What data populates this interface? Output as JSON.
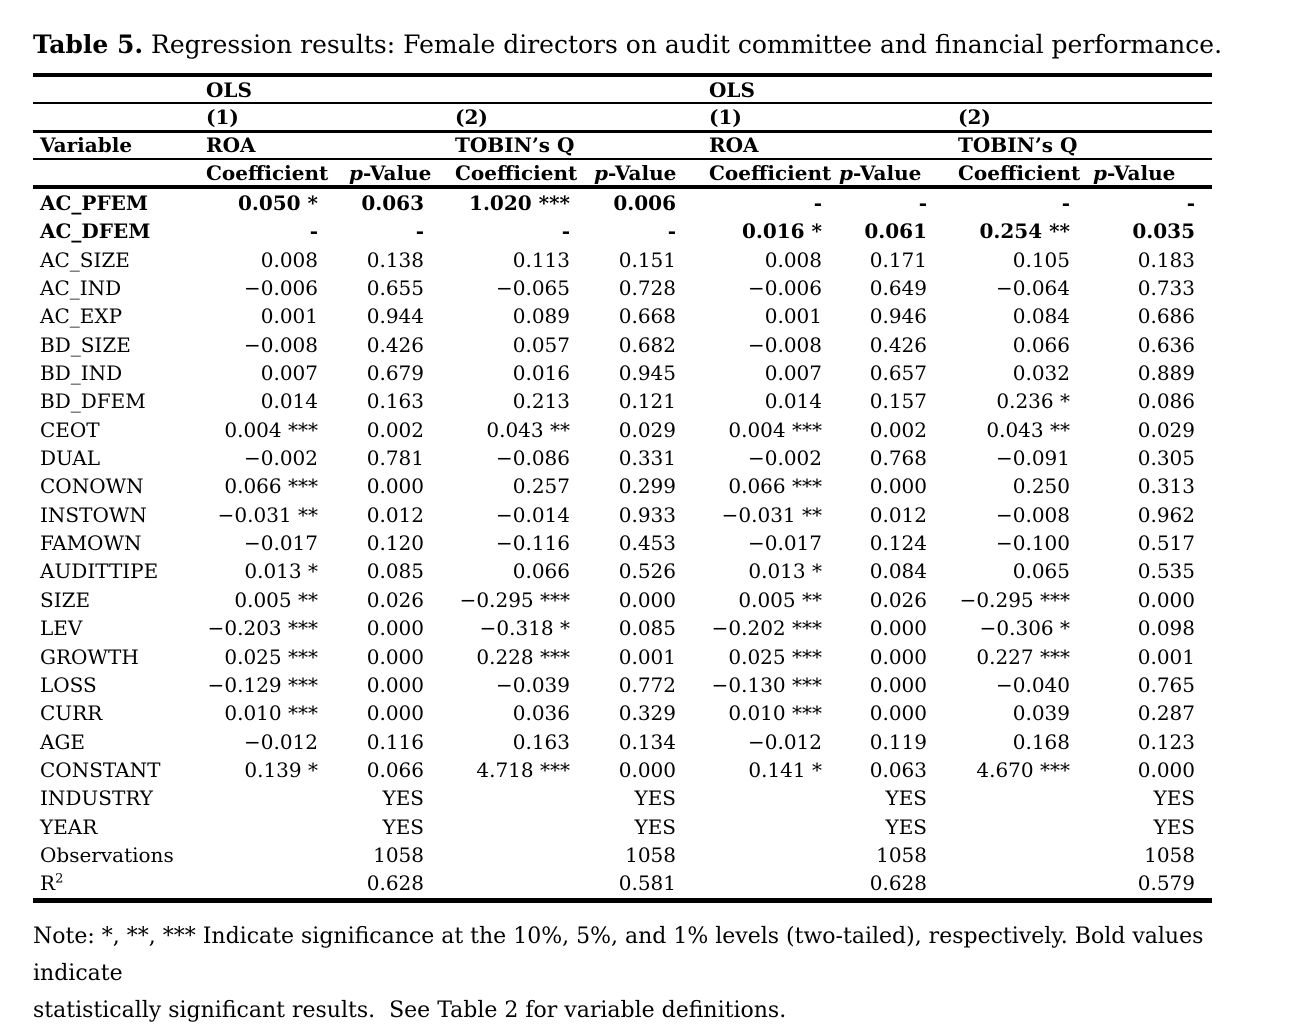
{
  "title": {
    "bold": "Table 5.",
    "rest": " Regression results: Female directors on audit committee and financial performance."
  },
  "header": {
    "group_label": "OLS",
    "model_1": "(1)",
    "model_2": "(2)",
    "variable": "Variable",
    "dep_roa": "ROA",
    "dep_tobin": "TOBIN’s Q",
    "coefficient": "Coefficient",
    "p": "p",
    "p_suffix": "-Value"
  },
  "rows": [
    {
      "label": "AC_PFEM",
      "bold": true,
      "cells": [
        "0.050 *",
        "0.063",
        "1.020 ***",
        "0.006",
        "-",
        "-",
        "-",
        "-"
      ]
    },
    {
      "label": "AC_DFEM",
      "bold": true,
      "cells": [
        "-",
        "-",
        "-",
        "-",
        "0.016 *",
        "0.061",
        "0.254 **",
        "0.035"
      ]
    },
    {
      "label": "AC_SIZE",
      "bold": false,
      "cells": [
        "0.008",
        "0.138",
        "0.113",
        "0.151",
        "0.008",
        "0.171",
        "0.105",
        "0.183"
      ]
    },
    {
      "label": "AC_IND",
      "bold": false,
      "cells": [
        "−0.006",
        "0.655",
        "−0.065",
        "0.728",
        "−0.006",
        "0.649",
        "−0.064",
        "0.733"
      ]
    },
    {
      "label": "AC_EXP",
      "bold": false,
      "cells": [
        "0.001",
        "0.944",
        "0.089",
        "0.668",
        "0.001",
        "0.946",
        "0.084",
        "0.686"
      ]
    },
    {
      "label": "BD_SIZE",
      "bold": false,
      "cells": [
        "−0.008",
        "0.426",
        "0.057",
        "0.682",
        "−0.008",
        "0.426",
        "0.066",
        "0.636"
      ]
    },
    {
      "label": "BD_IND",
      "bold": false,
      "cells": [
        "0.007",
        "0.679",
        "0.016",
        "0.945",
        "0.007",
        "0.657",
        "0.032",
        "0.889"
      ]
    },
    {
      "label": "BD_DFEM",
      "bold": false,
      "cells": [
        "0.014",
        "0.163",
        "0.213",
        "0.121",
        "0.014",
        "0.157",
        "0.236 *",
        "0.086"
      ]
    },
    {
      "label": "CEOT",
      "bold": false,
      "cells": [
        "0.004 ***",
        "0.002",
        "0.043 **",
        "0.029",
        "0.004 ***",
        "0.002",
        "0.043 **",
        "0.029"
      ]
    },
    {
      "label": "DUAL",
      "bold": false,
      "cells": [
        "−0.002",
        "0.781",
        "−0.086",
        "0.331",
        "−0.002",
        "0.768",
        "−0.091",
        "0.305"
      ]
    },
    {
      "label": "CONOWN",
      "bold": false,
      "cells": [
        "0.066 ***",
        "0.000",
        "0.257",
        "0.299",
        "0.066 ***",
        "0.000",
        "0.250",
        "0.313"
      ]
    },
    {
      "label": "INSTOWN",
      "bold": false,
      "cells": [
        "−0.031 **",
        "0.012",
        "−0.014",
        "0.933",
        "−0.031 **",
        "0.012",
        "−0.008",
        "0.962"
      ]
    },
    {
      "label": "FAMOWN",
      "bold": false,
      "cells": [
        "−0.017",
        "0.120",
        "−0.116",
        "0.453",
        "−0.017",
        "0.124",
        "−0.100",
        "0.517"
      ]
    },
    {
      "label": "AUDITTIPE",
      "bold": false,
      "cells": [
        "0.013 *",
        "0.085",
        "0.066",
        "0.526",
        "0.013 *",
        "0.084",
        "0.065",
        "0.535"
      ]
    },
    {
      "label": "SIZE",
      "bold": false,
      "cells": [
        "0.005 **",
        "0.026",
        "−0.295 ***",
        "0.000",
        "0.005 **",
        "0.026",
        "−0.295 ***",
        "0.000"
      ]
    },
    {
      "label": "LEV",
      "bold": false,
      "cells": [
        "−0.203 ***",
        "0.000",
        "−0.318 *",
        "0.085",
        "−0.202 ***",
        "0.000",
        "−0.306 *",
        "0.098"
      ]
    },
    {
      "label": "GROWTH",
      "bold": false,
      "cells": [
        "0.025 ***",
        "0.000",
        "0.228 ***",
        "0.001",
        "0.025 ***",
        "0.000",
        "0.227 ***",
        "0.001"
      ]
    },
    {
      "label": "LOSS",
      "bold": false,
      "cells": [
        "−0.129 ***",
        "0.000",
        "−0.039",
        "0.772",
        "−0.130 ***",
        "0.000",
        "−0.040",
        "0.765"
      ]
    },
    {
      "label": "CURR",
      "bold": false,
      "cells": [
        "0.010 ***",
        "0.000",
        "0.036",
        "0.329",
        "0.010 ***",
        "0.000",
        "0.039",
        "0.287"
      ]
    },
    {
      "label": "AGE",
      "bold": false,
      "cells": [
        "−0.012",
        "0.116",
        "0.163",
        "0.134",
        "−0.012",
        "0.119",
        "0.168",
        "0.123"
      ]
    },
    {
      "label": "CONSTANT",
      "bold": false,
      "cells": [
        "0.139 *",
        "0.066",
        "4.718 ***",
        "0.000",
        "0.141 *",
        "0.063",
        "4.670 ***",
        "0.000"
      ]
    },
    {
      "label": "INDUSTRY",
      "bold": false,
      "cells": [
        "",
        "YES",
        "",
        "YES",
        "",
        "YES",
        "",
        "YES"
      ]
    },
    {
      "label": "YEAR",
      "bold": false,
      "cells": [
        "",
        "YES",
        "",
        "YES",
        "",
        "YES",
        "",
        "YES"
      ]
    },
    {
      "label": "Observations",
      "bold": false,
      "cells": [
        "",
        "1058",
        "",
        "1058",
        "",
        "1058",
        "",
        "1058"
      ]
    },
    {
      "label": "R",
      "sup": "2",
      "bold": false,
      "cells": [
        "",
        "0.628",
        "",
        "0.581",
        "",
        "0.628",
        "",
        "0.579"
      ]
    }
  ],
  "note": {
    "line1": "Note: *, **, *** Indicate significance at the 10%, 5%, and 1% levels (two-tailed), respectively. Bold values indicate",
    "line2": "statistically significant results.  See Table 2 for variable definitions."
  }
}
